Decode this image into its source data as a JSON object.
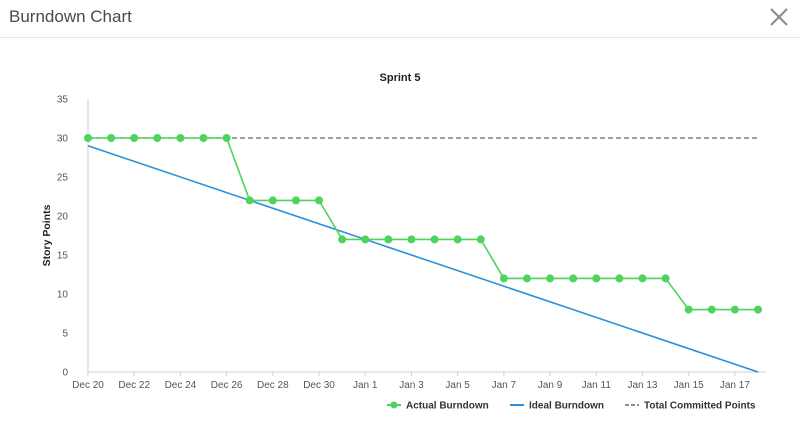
{
  "dialog": {
    "title": "Burndown Chart",
    "close_icon": "close-icon"
  },
  "chart_data": {
    "type": "line",
    "title": "Sprint 5",
    "ylabel": "Story Points",
    "xlabel": "",
    "ylim": [
      0,
      35
    ],
    "yticks": [
      0,
      5,
      10,
      15,
      20,
      25,
      30,
      35
    ],
    "xlim": [
      "2020-12-20",
      "2021-01-18"
    ],
    "xticks": [
      "Dec 20",
      "Dec 22",
      "Dec 24",
      "Dec 26",
      "Dec 28",
      "Dec 30",
      "Jan 1",
      "Jan 3",
      "Jan 5",
      "Jan 7",
      "Jan 9",
      "Jan 11",
      "Jan 13",
      "Jan 15",
      "Jan 17"
    ],
    "xtick_dates": [
      "2020-12-20",
      "2020-12-22",
      "2020-12-24",
      "2020-12-26",
      "2020-12-28",
      "2020-12-30",
      "2021-01-01",
      "2021-01-03",
      "2021-01-05",
      "2021-01-07",
      "2021-01-09",
      "2021-01-11",
      "2021-01-13",
      "2021-01-15",
      "2021-01-17"
    ],
    "grid": false,
    "legend_position": "bottom-right",
    "series": [
      {
        "name": "Actual Burndown",
        "color": "#4fd35d",
        "style": "solid-markers",
        "points": [
          {
            "x": "2020-12-20",
            "y": 30
          },
          {
            "x": "2020-12-21",
            "y": 30
          },
          {
            "x": "2020-12-22",
            "y": 30
          },
          {
            "x": "2020-12-23",
            "y": 30
          },
          {
            "x": "2020-12-24",
            "y": 30
          },
          {
            "x": "2020-12-25",
            "y": 30
          },
          {
            "x": "2020-12-26",
            "y": 30
          },
          {
            "x": "2020-12-27",
            "y": 22
          },
          {
            "x": "2020-12-28",
            "y": 22
          },
          {
            "x": "2020-12-29",
            "y": 22
          },
          {
            "x": "2020-12-30",
            "y": 22
          },
          {
            "x": "2020-12-31",
            "y": 17
          },
          {
            "x": "2021-01-01",
            "y": 17
          },
          {
            "x": "2021-01-02",
            "y": 17
          },
          {
            "x": "2021-01-03",
            "y": 17
          },
          {
            "x": "2021-01-04",
            "y": 17
          },
          {
            "x": "2021-01-05",
            "y": 17
          },
          {
            "x": "2021-01-06",
            "y": 17
          },
          {
            "x": "2021-01-07",
            "y": 12
          },
          {
            "x": "2021-01-08",
            "y": 12
          },
          {
            "x": "2021-01-09",
            "y": 12
          },
          {
            "x": "2021-01-10",
            "y": 12
          },
          {
            "x": "2021-01-11",
            "y": 12
          },
          {
            "x": "2021-01-12",
            "y": 12
          },
          {
            "x": "2021-01-13",
            "y": 12
          },
          {
            "x": "2021-01-14",
            "y": 12
          },
          {
            "x": "2021-01-15",
            "y": 8
          },
          {
            "x": "2021-01-16",
            "y": 8
          },
          {
            "x": "2021-01-17",
            "y": 8
          },
          {
            "x": "2021-01-18",
            "y": 8
          }
        ]
      },
      {
        "name": "Ideal Burndown",
        "color": "#2b90d9",
        "style": "solid",
        "points": [
          {
            "x": "2020-12-20",
            "y": 29
          },
          {
            "x": "2021-01-18",
            "y": 0
          }
        ]
      },
      {
        "name": "Total Committed Points",
        "color": "#666666",
        "style": "dashed",
        "points": [
          {
            "x": "2020-12-20",
            "y": 30
          },
          {
            "x": "2021-01-18",
            "y": 30
          }
        ]
      }
    ]
  }
}
